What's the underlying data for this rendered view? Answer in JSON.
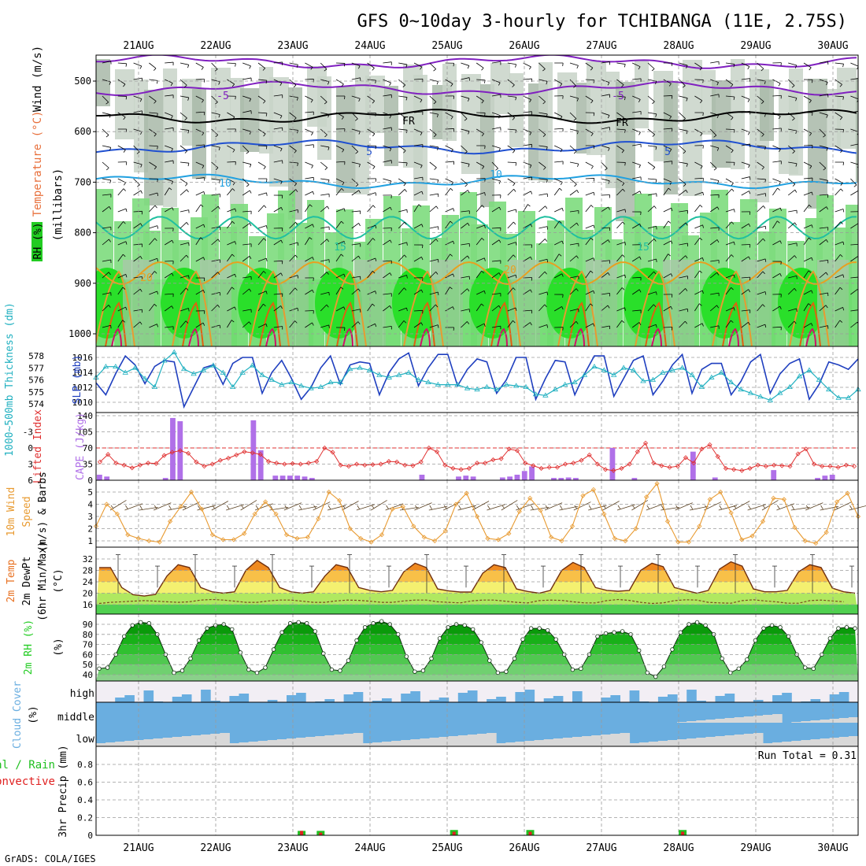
{
  "title": "GFS 0~10day 3-hourly for TCHIBANGA (11E, 2.75S)",
  "footer": "GrADS: COLA/IGES",
  "dates": [
    "21AUG",
    "22AUG",
    "23AUG",
    "24AUG",
    "25AUG",
    "26AUG",
    "27AUG",
    "28AUG",
    "29AUG",
    "30AUG"
  ],
  "colors": {
    "grid": "#9a9a9a",
    "frame": "#000000",
    "rh_green": "#22cc22",
    "temp_orange": "#e87020",
    "cape": "#b070e8",
    "slp": "#1f3fbf",
    "thick": "#20b0c0",
    "li": "#e03030",
    "wind": "#e89a30",
    "cloud": "#6aaee0",
    "precip_green": "#20c020",
    "precip_red": "#e02020"
  },
  "chart_data": [
    {
      "id": "upper_air",
      "type": "heatmap",
      "title": "Wind (m/s) / Temperature (°C) / RH (%)",
      "ylabel_parts": {
        "wind": "Wind (m/s)",
        "temp": "Temperature (°C)",
        "rh": "RH (%)",
        "units": "(millibars)"
      },
      "y_ticks": [
        "500",
        "600",
        "700",
        "800",
        "900",
        "1000"
      ],
      "ylim": [
        450,
        1000
      ],
      "isotherm_labels": [
        "-5",
        "FR",
        "5",
        "10",
        "15",
        "20"
      ],
      "isotherm_levels": [
        {
          "label": "-5",
          "p": 515,
          "color": "#8020c0"
        },
        {
          "label": "-5",
          "p": 462,
          "color": "#8020c0"
        },
        {
          "label": "FR",
          "p": 570,
          "color": "#000000"
        },
        {
          "label": "5",
          "p": 630,
          "color": "#2050d0"
        },
        {
          "label": "10",
          "p": 698,
          "color": "#20a0e0"
        },
        {
          "label": "15",
          "p": 790,
          "color": "#20c0a0"
        },
        {
          "label": "20",
          "p": 880,
          "color": "#e8a020"
        }
      ]
    },
    {
      "id": "slp_thickness",
      "type": "line",
      "ylabel": "SLP (mb)",
      "ylabel2": "1000~500mb Thickness (dm)",
      "y_ticks": [
        "1016",
        "1014",
        "1012",
        "1010"
      ],
      "y2_ticks": [
        "578",
        "577",
        "576",
        "575",
        "574"
      ],
      "series": [
        {
          "name": "SLP (mb)",
          "values": [
            1012.6,
            1011,
            1013.8,
            1016.2,
            1015,
            1012.5,
            1014.8,
            1015.6,
            1015.4,
            1009.4,
            1012,
            1014.6,
            1015,
            1012.4,
            1015.2,
            1016,
            1016,
            1011.2,
            1014,
            1015.6,
            1013.2,
            1010.4,
            1012,
            1014.6,
            1016.2,
            1012.4,
            1015,
            1015.4,
            1015.2,
            1011,
            1014,
            1015.8,
            1016.6,
            1012.2,
            1014.6,
            1016.4,
            1016.4,
            1012.2,
            1014.4,
            1015.8,
            1015.4,
            1011.2,
            1013,
            1016,
            1016,
            1010.4,
            1013.2,
            1015.6,
            1015.4,
            1011,
            1013.8,
            1016.2,
            1016.2,
            1010.8,
            1013.2,
            1015.6,
            1016.2,
            1011,
            1012.8,
            1015,
            1016.4,
            1011.2,
            1014.4,
            1015.2,
            1015.2,
            1011,
            1012.8,
            1015.4,
            1016.4,
            1011.2,
            1013.8,
            1015.2,
            1015.8,
            1010.4,
            1012.4,
            1015.4,
            1015,
            1014.4,
            1015.8
          ]
        },
        {
          "name": "Thickness (dm)",
          "values": [
            576.2,
            577.1,
            577.1,
            576.6,
            577,
            576.1,
            575.4,
            577.6,
            578.3,
            576.9,
            576.5,
            576.8,
            577.2,
            576.6,
            575.4,
            576.6,
            577.2,
            576.4,
            576,
            575.6,
            575.8,
            575.5,
            575.3,
            575.4,
            575.8,
            575.8,
            576.9,
            577,
            576.8,
            576.4,
            576.2,
            576.4,
            576.6,
            576,
            575.8,
            575.6,
            575.6,
            575.6,
            575.3,
            575.2,
            575.4,
            575.2,
            575.6,
            575.5,
            575.4,
            574.8,
            574.7,
            575.2,
            575.6,
            575.8,
            576.4,
            577.1,
            576.8,
            576.4,
            577,
            576.8,
            575.9,
            576,
            576.6,
            576.8,
            577,
            576.4,
            575.4,
            576.2,
            576.6,
            575.8,
            575.2,
            574.9,
            574.6,
            574.3,
            574.9,
            575.4,
            576.3,
            576.8,
            576,
            575.2,
            574.5,
            574.5,
            575.2
          ]
        }
      ]
    },
    {
      "id": "cape_li",
      "type": "bar",
      "ylabel": "CAPE (J/kg)",
      "ylabel2": "Lifted Index",
      "y_ticks": [
        "140",
        "105",
        "70",
        "35",
        "0"
      ],
      "y2_ticks": [
        "-3",
        "0",
        "3",
        "6"
      ],
      "series": [
        {
          "name": "CAPE (J/kg)",
          "values": [
            12,
            8,
            0,
            0,
            0,
            0,
            0,
            0,
            0,
            5,
            135,
            128,
            0,
            0,
            0,
            0,
            0,
            0,
            0,
            0,
            0,
            130,
            65,
            0,
            10,
            10,
            10,
            10,
            8,
            5,
            0,
            0,
            0,
            0,
            0,
            0,
            0,
            0,
            0,
            0,
            0,
            0,
            0,
            0,
            12,
            0,
            0,
            0,
            0,
            8,
            10,
            8,
            0,
            0,
            0,
            6,
            8,
            12,
            20,
            30,
            0,
            0,
            5,
            5,
            6,
            5,
            0,
            0,
            0,
            0,
            70,
            0,
            0,
            5,
            0,
            0,
            0,
            0,
            0,
            0,
            0,
            62,
            0,
            0,
            6,
            0,
            0,
            0,
            0,
            0,
            0,
            0,
            22,
            0,
            0,
            0,
            0,
            0,
            5,
            10,
            12,
            0,
            0,
            0
          ]
        },
        {
          "name": "Lifted Index",
          "values": [
            2.6,
            1.2,
            2.8,
            3.2,
            3.7,
            3.2,
            2.8,
            2.9,
            1.4,
            0.8,
            0.5,
            1,
            2.6,
            3.4,
            3.0,
            2.3,
            1.9,
            1.3,
            0.7,
            0.9,
            1.2,
            2.5,
            2.8,
            3.0,
            2.9,
            3.0,
            2.8,
            2.5,
            0.0,
            0.8,
            3.2,
            3.4,
            3.0,
            3.2,
            3.1,
            3.0,
            2.5,
            2.6,
            3.2,
            3.3,
            2.6,
            0,
            0.7,
            3.2,
            3.8,
            4,
            3.8,
            2.8,
            2.8,
            2.2,
            2,
            0.2,
            0.5,
            2.8,
            3.3,
            3.8,
            3.6,
            3.6,
            3.0,
            2.8,
            2.3,
            1.3,
            3,
            4,
            4.2,
            3.8,
            3.0,
            0.7,
            -0.9,
            2.8,
            3.3,
            3.6,
            3.4,
            1.8,
            2.8,
            0.2,
            -0.6,
            1.6,
            3.8,
            4,
            4.2,
            3.8,
            3.2,
            3.4,
            3.2,
            3.3,
            3.4,
            1.1,
            0.2,
            3.0,
            3.4,
            3.4,
            3.6,
            3.2,
            3.4
          ]
        }
      ]
    },
    {
      "id": "wind10m",
      "type": "line",
      "ylabel": "10m Wind Speed (m/s) & Barbs",
      "y_ticks": [
        "5",
        "4",
        "3",
        "2",
        "1"
      ],
      "ylim": [
        0.5,
        5.5
      ],
      "series": [
        {
          "name": "10m Wind Speed (m/s)",
          "values": [
            2.2,
            4,
            3.2,
            1.5,
            1.2,
            1.0,
            0.9,
            2.6,
            3.8,
            5,
            3.6,
            1.5,
            1.1,
            1.1,
            1.6,
            3.2,
            4.2,
            3.2,
            1.5,
            1.2,
            1.3,
            2.8,
            5,
            4.3,
            2,
            1.2,
            0.9,
            1.5,
            3.6,
            3.8,
            2.2,
            1.3,
            1.0,
            1.8,
            4,
            4.9,
            3,
            1.2,
            1.1,
            1.6,
            3.4,
            4.5,
            3.5,
            1.3,
            1,
            2.2,
            4.7,
            5.2,
            3.2,
            1.2,
            1.0,
            2.0,
            4.6,
            5.7,
            2.6,
            0.9,
            0.9,
            2.2,
            4.4,
            5,
            3.3,
            1.1,
            1.4,
            2.6,
            4.5,
            4.4,
            2.1,
            1,
            0.8,
            1.7,
            4.2,
            4.9,
            3.0
          ]
        }
      ]
    },
    {
      "id": "temp2m",
      "type": "area",
      "ylabel": "2m Temp 2m DewPt (6hr Min/Max) (°C)",
      "y_ticks": [
        "32",
        "28",
        "24",
        "20",
        "16"
      ],
      "ylim": [
        12,
        34
      ],
      "series": [
        {
          "name": "2m Temp (°C)",
          "values": [
            29,
            29,
            22,
            19.5,
            19,
            19.6,
            26,
            30,
            29,
            22,
            20.5,
            20,
            20.5,
            28,
            31.5,
            29,
            22,
            20.5,
            20,
            20.5,
            26,
            30,
            29,
            22,
            21,
            20.5,
            21,
            27.5,
            30.5,
            29,
            21.5,
            20.8,
            20.4,
            20.4,
            27,
            30,
            29,
            21.5,
            20.6,
            20,
            21,
            28,
            30.8,
            29,
            22,
            21,
            20.7,
            21,
            28,
            30.5,
            29.3,
            22,
            21,
            20,
            21,
            28.5,
            31,
            29.5,
            21.5,
            20.5,
            20.5,
            21,
            27.5,
            30,
            29,
            21.8,
            20.5,
            20
          ]
        },
        {
          "name": "2m DewPt (°C)",
          "values": [
            16.4,
            16.8,
            17,
            17.2,
            17.4,
            17.2,
            17,
            16.8,
            17,
            17.6,
            17.8,
            17.6,
            17.2,
            16.8,
            16.8,
            17.3,
            17.6,
            17.6,
            17.2,
            16.8,
            16.8,
            17.3,
            17.6,
            17.5,
            17.2,
            16.8,
            16.8,
            17.3,
            17.6,
            17.6,
            17,
            16.8,
            16.6,
            17.3,
            17.6,
            17.6,
            17.2,
            16.8,
            16.6,
            17.4,
            17.6,
            17.5,
            17,
            16.6,
            16.6,
            17.4,
            17.8,
            17.5,
            16.8,
            16.4,
            16.6,
            17.4,
            17.7,
            17.6,
            16.8,
            16.6,
            16.5,
            17.4,
            17.7,
            17.3,
            17,
            16.5,
            16.5,
            17.4,
            17.6,
            17.3,
            17
          ]
        }
      ]
    },
    {
      "id": "rh2m",
      "type": "area",
      "ylabel": "2m RH (%)",
      "y_ticks": [
        "90",
        "80",
        "70",
        "60",
        "50",
        "40"
      ],
      "ylim": [
        32,
        96
      ],
      "series": [
        {
          "name": "2m RH (%)",
          "values": [
            46,
            47,
            60,
            78,
            89,
            92,
            91,
            80,
            60,
            42,
            44,
            56,
            74,
            86,
            89,
            90,
            85,
            62,
            45,
            42,
            47,
            65,
            82,
            91,
            92,
            91,
            83,
            61,
            45,
            44,
            54,
            74,
            87,
            91,
            93,
            90,
            80,
            58,
            43,
            44,
            56,
            76,
            87,
            90,
            89,
            85,
            72,
            54,
            42,
            43,
            56,
            75,
            86,
            86,
            84,
            75,
            60,
            45,
            46,
            60,
            78,
            81,
            82,
            83,
            80,
            64,
            42,
            38,
            48,
            65,
            82,
            90,
            92,
            89,
            80,
            56,
            42,
            46,
            55,
            74,
            86,
            89,
            87,
            78,
            60,
            47,
            46,
            60,
            76,
            86,
            87,
            86
          ]
        }
      ]
    },
    {
      "id": "cloud",
      "type": "area",
      "ylabel": "Cloud Cover (%)",
      "levels": [
        "high",
        "middle",
        "low"
      ]
    },
    {
      "id": "precip",
      "type": "bar",
      "ylabel": "3hr Precip (mm)",
      "ylabel2_total": "Total / Rain",
      "ylabel2_conv": "Convective",
      "y_ticks": [
        "0.8",
        "0.6",
        "0.4",
        "0.2",
        "0"
      ],
      "ylim": [
        0,
        1
      ],
      "run_total": "Run Total = 0.31",
      "bars": [
        {
          "t": 21,
          "total": 0.05,
          "conv": 0.05
        },
        {
          "t": 23,
          "total": 0.05,
          "conv": 0.03
        },
        {
          "t": 37,
          "total": 0.06,
          "conv": 0.04
        },
        {
          "t": 45,
          "total": 0.06,
          "conv": 0.04
        },
        {
          "t": 61,
          "total": 0.06,
          "conv": 0.04
        }
      ]
    }
  ]
}
